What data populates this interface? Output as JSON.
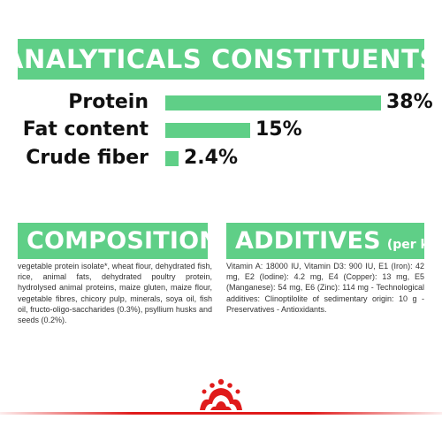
{
  "header": {
    "title": "ANALYTICALS CONSTITUENTS"
  },
  "constituents": [
    {
      "label": "Protein",
      "value": "38%",
      "level": 0.38
    },
    {
      "label": "Fat content",
      "value": "15%",
      "level": 0.15
    },
    {
      "label": "Crude fiber",
      "value": "2.4%",
      "level": 0.024
    }
  ],
  "composition": {
    "title": "COMPOSITION",
    "text": "vegetable protein isolate*, wheat flour, dehydrated fish, rice, animal fats, dehydrated poultry protein, hydrolysed animal proteins, maize gluten, maize flour, vegetable fibres, chicory pulp, minerals, soya oil, fish oil, fructo-oligo-saccharides (0.3%), psyllium husks and seeds (0.2%)."
  },
  "additives": {
    "title": "ADDITIVES",
    "subtitle": "(per kg)",
    "text": "Vitamin A: 18000 IU, Vitamin D3: 900 IU, E1 (Iron): 42 mg, E2 (Iodine): 4.2 mg, E4 (Copper): 13 mg, E5 (Manganese): 54 mg, E6 (Zinc): 114 mg - Technological additives: Clinoptilolite of sedimentary origin: 10 g - Preservatives - Antioxidants."
  },
  "colors": {
    "accent": "#5fcf87",
    "brand_red": "#e01b1b",
    "text": "#111111"
  },
  "footer": {
    "logo": "royal-canin-crown-icon"
  }
}
